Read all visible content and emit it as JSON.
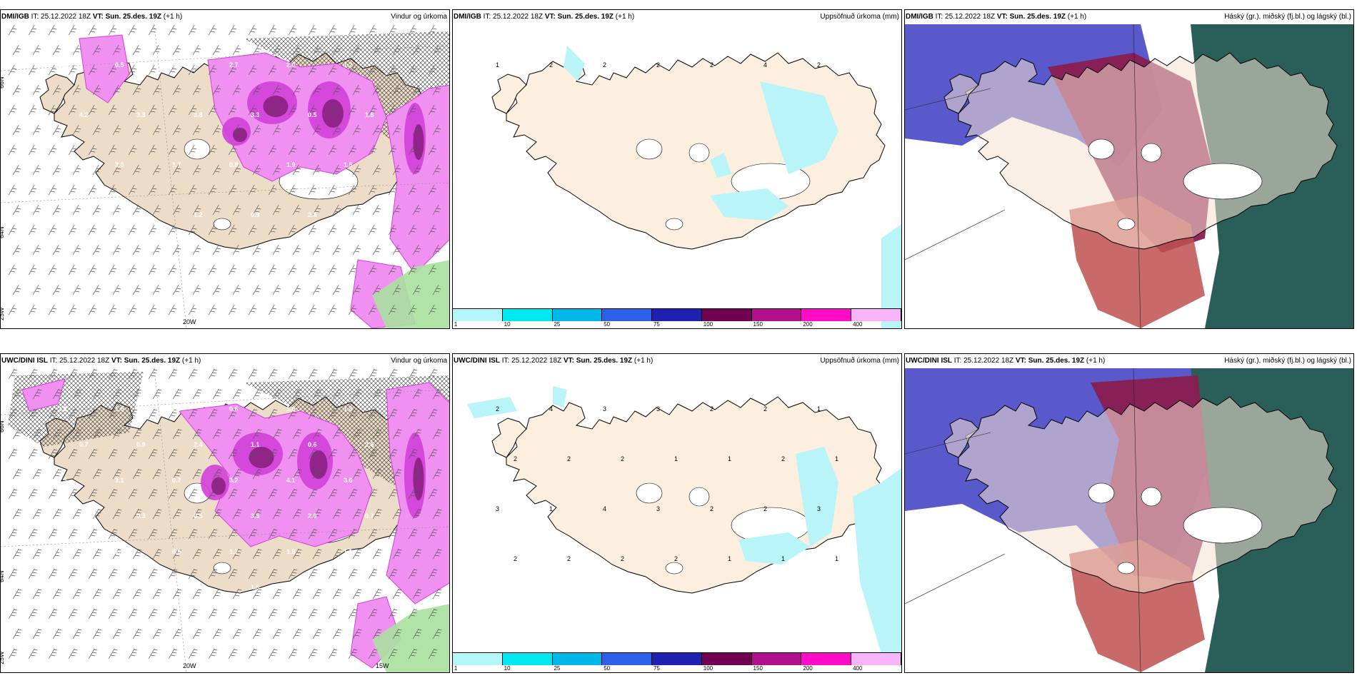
{
  "panels": [
    {
      "model": "DMI/IGB",
      "it_label": "IT:",
      "it_value": "25.12.2022 18Z",
      "vt_label": "VT:",
      "vt_value": "Sun. 25.des. 19Z",
      "lead": "(+1 h)",
      "product": "Vindur og úrkoma",
      "kind": "wind",
      "grid_labels": [
        "66N",
        "64N",
        "25W",
        "20W"
      ],
      "values": [
        "1.5",
        "0.5",
        "2.1",
        "2.7",
        "2.0",
        "1.2",
        "4.2",
        "3.3",
        "3.8",
        "3.3",
        "0.5",
        "1.8",
        "2.2",
        "3.0",
        "1.7",
        "0.8",
        "1.9",
        "1.5",
        "2.3",
        "2.4",
        "1.2",
        "0.9",
        "2.8"
      ]
    },
    {
      "model": "DMI/IGB",
      "it_label": "IT:",
      "it_value": "25.12.2022 18Z",
      "vt_label": "VT:",
      "vt_value": "Sun. 25.des. 19Z",
      "lead": "(+1 h)",
      "product": "Uppsöfnuð úrkoma (mm)",
      "kind": "accum",
      "values": [
        "1",
        "2",
        "2",
        "2",
        "2",
        "4",
        "2"
      ]
    },
    {
      "model": "DMI/IGB",
      "it_label": "IT:",
      "it_value": "25.12.2022 18Z",
      "vt_label": "VT:",
      "vt_value": "Sun. 25.des. 19Z",
      "lead": "(+1 h)",
      "product": "Háský (gr.), miðský (fj.bl.) og lágský (bl.)",
      "kind": "cloud"
    },
    {
      "model": "UWC/DINI ISL",
      "it_label": "IT:",
      "it_value": "25.12.2022 18Z",
      "vt_label": "VT:",
      "vt_value": "Sun. 25.des. 19Z",
      "lead": "(+1 h)",
      "product": "Vindur og úrkoma",
      "kind": "wind",
      "grid_labels": [
        "66N",
        "64N",
        "25W",
        "20W",
        "15W"
      ],
      "values": [
        "2.9",
        "1.5",
        "2.9",
        "0.6",
        "1.0",
        "1.8",
        "0.7",
        "0.9",
        "2.4",
        "1.1",
        "0.6",
        "2.6",
        "0.5",
        "3.1",
        "0.7",
        "3.2",
        "4.1",
        "3.6",
        "1.0",
        "0.3",
        "0.5",
        "3.9",
        "2.9",
        "0.7",
        "1.4",
        "1.0",
        "0.5",
        "1.7",
        "1.8",
        "1.1",
        "2.4",
        "1.6",
        "3.1",
        "1.5",
        "2.0",
        "0.3",
        "1.3",
        "1.2",
        "1.3",
        "0.3",
        "0.3"
      ]
    },
    {
      "model": "UWC/DINI ISL",
      "it_label": "IT:",
      "it_value": "25.12.2022 18Z",
      "vt_label": "VT:",
      "vt_value": "Sun. 25.des. 19Z",
      "lead": "(+1 h)",
      "product": "Uppsöfnuð úrkoma (mm)",
      "kind": "accum",
      "values": [
        "2",
        "4",
        "3",
        "3",
        "2",
        "2",
        "1",
        "2",
        "2",
        "2",
        "1",
        "1",
        "2",
        "1",
        "3",
        "1",
        "4",
        "3",
        "2",
        "2",
        "3",
        "2",
        "2",
        "2",
        "2",
        "1",
        "1",
        "1"
      ]
    },
    {
      "model": "UWC/DINI ISL",
      "it_label": "IT:",
      "it_value": "25.12.2022 18Z",
      "vt_label": "VT:",
      "vt_value": "Sun. 25.des. 19Z",
      "lead": "(+1 h)",
      "product": "Háský (gr.), miðský (fj.bl.) og lágský (bl.)",
      "kind": "cloud"
    }
  ],
  "colorbar": {
    "colors": [
      "#b4f6fa",
      "#00e8f0",
      "#00b8e8",
      "#2c60e8",
      "#2020b0",
      "#700050",
      "#b0108c",
      "#ff0cc8",
      "#f8b4f8"
    ],
    "ticks": [
      "1",
      "10",
      "25",
      "50",
      "75",
      "100",
      "150",
      "200",
      "400"
    ]
  },
  "palette": {
    "land": "#fcefe0",
    "land_wind": "#ecdcc8",
    "precip_light": "#f090f0",
    "precip_mid": "#d040d8",
    "precip_dark": "#8a2080",
    "snow_green": "#a8e0a0",
    "accum_light": "#b8f4f8",
    "cloud_high": "#2a5e58",
    "cloud_mid": "#5050c8",
    "cloud_low": "#8a1e50",
    "cloud_lowlight": "#c05050"
  }
}
